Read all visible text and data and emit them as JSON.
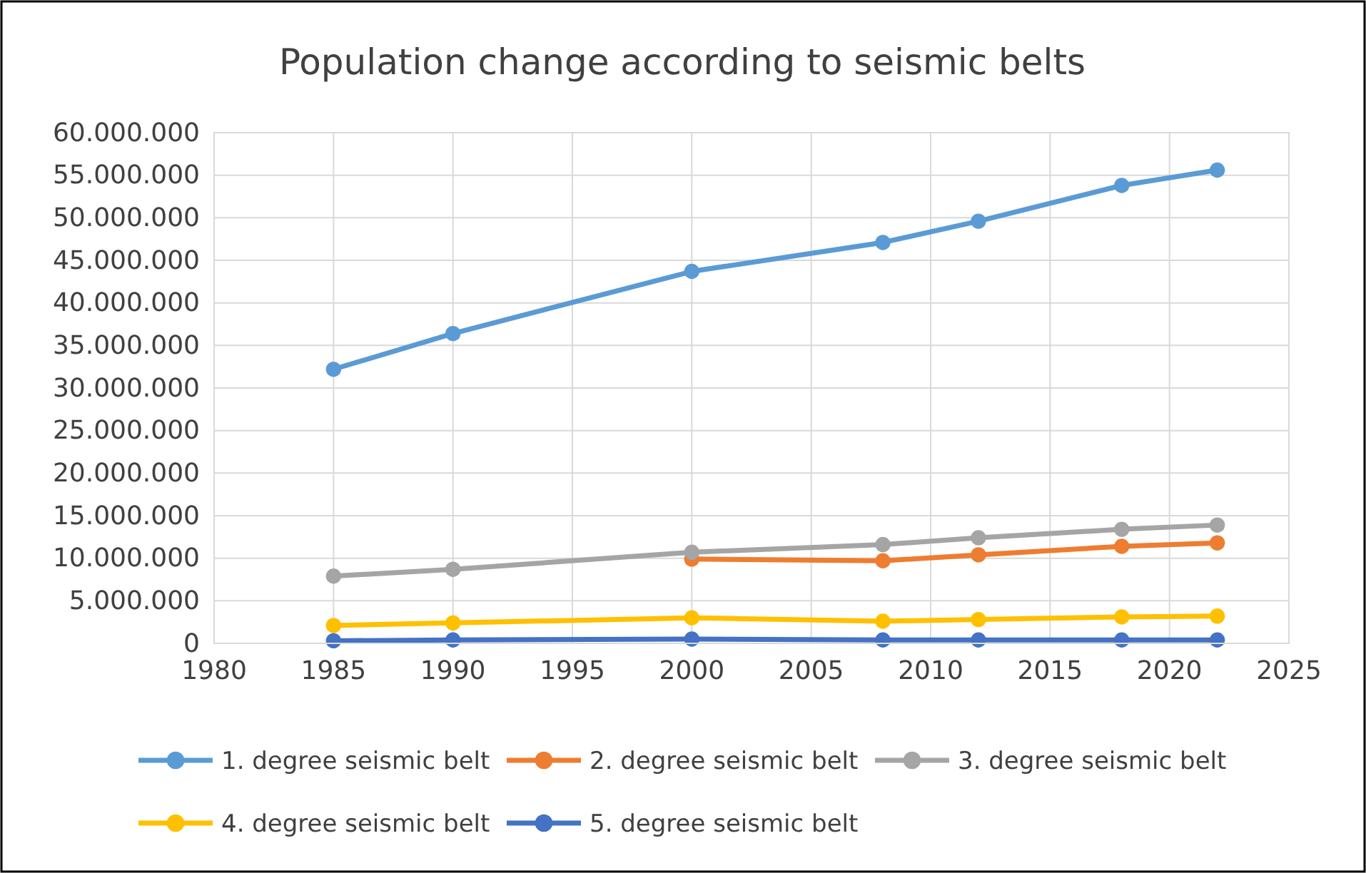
{
  "chart_data": {
    "type": "line",
    "title": "Population change according to seismic belts",
    "x": [
      1985,
      1990,
      2000,
      2008,
      2012,
      2018,
      2022
    ],
    "series": [
      {
        "name": "1. degree seismic belt",
        "color": "#5b9bd5",
        "values": [
          32200000,
          36400000,
          43700000,
          47100000,
          49600000,
          53800000,
          55600000
        ]
      },
      {
        "name": "2. degree seismic belt",
        "color": "#ed7d31",
        "values": [
          null,
          null,
          9900000,
          9700000,
          10400000,
          11400000,
          11800000
        ]
      },
      {
        "name": "3. degree seismic belt",
        "color": "#a5a5a5",
        "values": [
          7900000,
          8700000,
          10700000,
          11600000,
          12400000,
          13400000,
          13900000
        ]
      },
      {
        "name": "4. degree seismic belt",
        "color": "#ffc000",
        "values": [
          2100000,
          2400000,
          3000000,
          2600000,
          2800000,
          3100000,
          3200000
        ]
      },
      {
        "name": "5. degree seismic belt",
        "color": "#4472c4",
        "values": [
          300000,
          400000,
          500000,
          400000,
          400000,
          400000,
          400000
        ]
      }
    ],
    "xlim": [
      1980,
      2025
    ],
    "xticks": [
      1980,
      1985,
      1990,
      1995,
      2000,
      2005,
      2010,
      2015,
      2020,
      2025
    ],
    "ylim": [
      0,
      60000000
    ],
    "yticks": [
      0,
      {
        "value": 5000000,
        "label": "5.000.000"
      },
      {
        "value": 10000000,
        "label": "10.000.000"
      },
      {
        "value": 15000000,
        "label": "15.000.000"
      },
      {
        "value": 20000000,
        "label": "20.000.000"
      },
      {
        "value": 25000000,
        "label": "25.000.000"
      },
      {
        "value": 30000000,
        "label": "30.000.000"
      },
      {
        "value": 35000000,
        "label": "35.000.000"
      },
      {
        "value": 40000000,
        "label": "40.000.000"
      },
      {
        "value": 45000000,
        "label": "45.000.000"
      },
      {
        "value": 50000000,
        "label": "50.000.000"
      },
      {
        "value": 55000000,
        "label": "55.000.000"
      },
      {
        "value": 60000000,
        "label": "60.000.000"
      }
    ],
    "grid": true,
    "legend": "bottom",
    "marker": "circle",
    "line_style": "solid"
  }
}
